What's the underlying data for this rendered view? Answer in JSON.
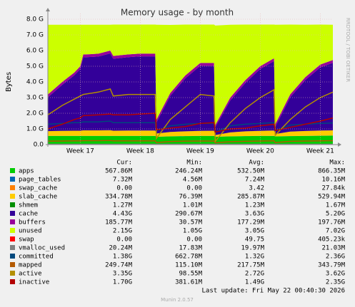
{
  "chart_data": {
    "type": "area",
    "title": "Memory usage - by month",
    "y_label": "Bytes",
    "side_text": "RRDTOOL / TOBI OETIKER",
    "footer": "Last update: Fri May 22 00:40:30 2026",
    "version": "Munin 2.0.57",
    "legend_headers": [
      "Cur:",
      "Min:",
      "Avg:",
      "Max:"
    ],
    "grid": true,
    "xlim": [
      16.46,
      21.21
    ],
    "xticks": [
      {
        "value": 17,
        "label": "Week 17"
      },
      {
        "value": 18,
        "label": "Week 18"
      },
      {
        "value": 19,
        "label": "Week 19"
      },
      {
        "value": 20,
        "label": "Week 20"
      },
      {
        "value": 21,
        "label": "Week 21"
      }
    ],
    "ylim": [
      0,
      8
    ],
    "yticks": [
      {
        "value": 0,
        "label": "0.0"
      },
      {
        "value": 1,
        "label": "1.0 G"
      },
      {
        "value": 2,
        "label": "2.0 G"
      },
      {
        "value": 3,
        "label": "3.0 G"
      },
      {
        "value": 4,
        "label": "4.0 G"
      },
      {
        "value": 5,
        "label": "5.0 G"
      },
      {
        "value": 6,
        "label": "6.0 G"
      },
      {
        "value": 7,
        "label": "7.0 G"
      },
      {
        "value": 8,
        "label": "8.0 G"
      }
    ],
    "x": [
      16.46,
      16.7,
      16.9,
      17.0,
      17.05,
      17.3,
      17.5,
      17.55,
      17.8,
      18.0,
      18.25,
      18.27,
      18.5,
      18.75,
      19.0,
      19.23,
      19.25,
      19.5,
      19.75,
      20.0,
      20.23,
      20.25,
      20.5,
      20.75,
      21.0,
      21.21
    ],
    "series": [
      {
        "name": "apps",
        "draw": "area",
        "color": "#00cc00",
        "cur": "567.86M",
        "min": "246.24M",
        "avg": "532.50M",
        "max": "866.35M",
        "values": [
          0.55,
          0.55,
          0.55,
          0.55,
          0.55,
          0.55,
          0.55,
          0.55,
          0.55,
          0.55,
          0.55,
          0.5,
          0.52,
          0.54,
          0.55,
          0.55,
          0.5,
          0.52,
          0.54,
          0.55,
          0.55,
          0.52,
          0.54,
          0.55,
          0.56,
          0.57
        ]
      },
      {
        "name": "page_tables",
        "draw": "area",
        "color": "#0066b3",
        "cur": "7.32M",
        "min": "4.56M",
        "avg": "7.24M",
        "max": "10.16M",
        "values": [
          0.007,
          0.007,
          0.007,
          0.007,
          0.007,
          0.007,
          0.007,
          0.007,
          0.007,
          0.007,
          0.007,
          0.007,
          0.007,
          0.007,
          0.007,
          0.007,
          0.007,
          0.007,
          0.007,
          0.007,
          0.007,
          0.007,
          0.007,
          0.007,
          0.007,
          0.007
        ]
      },
      {
        "name": "swap_cache",
        "draw": "area",
        "color": "#ff8000",
        "cur": "0.00",
        "min": "0.00",
        "avg": "3.42",
        "max": "27.84k",
        "values": [
          0,
          0,
          0,
          0,
          0,
          0,
          0,
          0,
          0,
          0,
          0,
          0,
          0,
          0,
          0,
          0,
          0,
          0,
          0,
          0,
          0,
          0,
          0,
          0,
          0,
          0
        ]
      },
      {
        "name": "slab_cache",
        "draw": "area",
        "color": "#ffcc00",
        "cur": "334.78M",
        "min": "76.39M",
        "avg": "285.87M",
        "max": "529.94M",
        "values": [
          0.3,
          0.32,
          0.33,
          0.33,
          0.35,
          0.35,
          0.36,
          0.33,
          0.34,
          0.34,
          0.34,
          0.2,
          0.28,
          0.3,
          0.32,
          0.33,
          0.1,
          0.25,
          0.3,
          0.32,
          0.34,
          0.15,
          0.28,
          0.31,
          0.33,
          0.33
        ]
      },
      {
        "name": "shmem",
        "draw": "area",
        "color": "#008f00",
        "cur": "1.27M",
        "min": "1.01M",
        "avg": "1.23M",
        "max": "1.67M",
        "values": [
          0.0013,
          0.0013,
          0.0013,
          0.0013,
          0.0013,
          0.0013,
          0.0013,
          0.0013,
          0.0013,
          0.0013,
          0.0013,
          0.0013,
          0.0013,
          0.0013,
          0.0013,
          0.0013,
          0.0013,
          0.0013,
          0.0013,
          0.0013,
          0.0013,
          0.0013,
          0.0013,
          0.0013,
          0.0013,
          0.0013
        ]
      },
      {
        "name": "cache",
        "draw": "area",
        "color": "#330099",
        "cur": "4.43G",
        "min": "290.67M",
        "avg": "3.63G",
        "max": "5.20G",
        "values": [
          2.16,
          2.94,
          3.53,
          3.93,
          4.66,
          4.71,
          4.9,
          4.59,
          4.68,
          4.73,
          4.73,
          0.71,
          2.3,
          3.38,
          4.15,
          4.14,
          0.51,
          2.04,
          3.08,
          3.95,
          4.43,
          0.45,
          2.2,
          3.25,
          4.03,
          4.31
        ]
      },
      {
        "name": "buffers",
        "draw": "area",
        "color": "#990099",
        "cur": "185.77M",
        "min": "30.57M",
        "avg": "177.29M",
        "max": "197.76M",
        "values": [
          0.18,
          0.18,
          0.18,
          0.18,
          0.18,
          0.18,
          0.18,
          0.18,
          0.18,
          0.18,
          0.18,
          0.18,
          0.18,
          0.18,
          0.18,
          0.18,
          0.13,
          0.18,
          0.18,
          0.18,
          0.18,
          0.17,
          0.18,
          0.18,
          0.18,
          0.18
        ]
      },
      {
        "name": "unused",
        "draw": "area",
        "color": "#ccff00",
        "cur": "2.15G",
        "min": "1.05G",
        "avg": "3.05G",
        "max": "7.02G",
        "values": [
          4.45,
          3.65,
          3.05,
          2.65,
          1.9,
          1.85,
          1.65,
          2.0,
          1.9,
          1.85,
          1.85,
          6.05,
          4.35,
          3.25,
          2.45,
          2.45,
          6.35,
          4.65,
          3.55,
          2.65,
          2.15,
          6.35,
          4.45,
          3.35,
          2.55,
          2.25
        ]
      },
      {
        "name": "swap",
        "draw": "area",
        "color": "#ff0000",
        "cur": "0.00",
        "min": "0.00",
        "avg": "49.75",
        "max": "405.23k",
        "values": [
          0,
          0,
          0,
          0,
          0,
          0,
          0,
          0,
          0,
          0,
          0,
          0,
          0,
          0,
          0,
          0,
          0,
          0,
          0,
          0,
          0,
          0,
          0,
          0,
          0,
          0
        ]
      },
      {
        "name": "vmalloc_used",
        "draw": "line",
        "color": "#808080",
        "cur": "20.24M",
        "min": "17.83M",
        "avg": "19.97M",
        "max": "21.03M",
        "values": [
          0.02,
          0.02,
          0.02,
          0.02,
          0.02,
          0.02,
          0.02,
          0.02,
          0.02,
          0.02,
          0.02,
          0.02,
          0.02,
          0.02,
          0.02,
          0.02,
          0.02,
          0.02,
          0.02,
          0.02,
          0.02,
          0.02,
          0.02,
          0.02,
          0.02,
          0.02
        ]
      },
      {
        "name": "committed",
        "draw": "line",
        "color": "#00487d",
        "cur": "1.38G",
        "min": "662.78M",
        "avg": "1.32G",
        "max": "2.36G",
        "values": [
          1.3,
          1.35,
          1.4,
          1.4,
          1.45,
          1.45,
          1.5,
          1.4,
          1.4,
          1.4,
          1.4,
          0.9,
          1.2,
          1.3,
          1.35,
          1.35,
          0.8,
          1.2,
          1.3,
          1.35,
          1.4,
          0.9,
          1.25,
          1.3,
          1.35,
          1.38
        ]
      },
      {
        "name": "mapped",
        "draw": "line",
        "color": "#b35a00",
        "cur": "249.74M",
        "min": "115.10M",
        "avg": "217.75M",
        "max": "343.79M",
        "values": [
          0.22,
          0.23,
          0.24,
          0.24,
          0.25,
          0.25,
          0.26,
          0.24,
          0.24,
          0.24,
          0.24,
          0.13,
          0.2,
          0.22,
          0.23,
          0.23,
          0.12,
          0.19,
          0.21,
          0.23,
          0.24,
          0.13,
          0.21,
          0.23,
          0.24,
          0.25
        ]
      },
      {
        "name": "active",
        "draw": "line",
        "color": "#b38f00",
        "cur": "3.35G",
        "min": "98.55M",
        "avg": "2.72G",
        "max": "3.62G",
        "values": [
          1.9,
          2.5,
          2.9,
          3.1,
          3.2,
          3.35,
          3.55,
          3.1,
          3.2,
          3.2,
          3.2,
          0.4,
          1.6,
          2.4,
          3.2,
          3.1,
          0.2,
          1.4,
          2.3,
          3.0,
          3.5,
          0.6,
          1.6,
          2.4,
          3.0,
          3.35
        ]
      },
      {
        "name": "inactive",
        "draw": "line",
        "color": "#b30000",
        "cur": "1.70G",
        "min": "381.61M",
        "avg": "1.49G",
        "max": "2.35G",
        "values": [
          1.0,
          1.3,
          1.6,
          1.7,
          1.85,
          1.9,
          1.95,
          1.9,
          1.9,
          1.95,
          2.0,
          0.95,
          1.05,
          1.15,
          1.35,
          1.4,
          0.8,
          1.0,
          1.05,
          1.2,
          1.3,
          0.9,
          1.1,
          1.3,
          1.5,
          1.7
        ]
      }
    ]
  }
}
